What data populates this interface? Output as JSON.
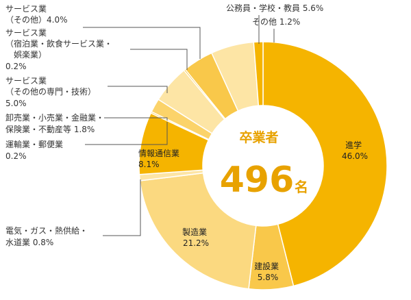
{
  "chart_data": {
    "type": "pie",
    "style": "donut",
    "center": {
      "title": "卒業者",
      "total": "496",
      "unit": "名"
    },
    "slices": [
      {
        "key": "shingaku",
        "label_lines": [
          "進学",
          "46.0%"
        ],
        "value": 46.0,
        "color": "#f5b400"
      },
      {
        "key": "kensetsu",
        "label_lines": [
          "建設業",
          "5.8%"
        ],
        "value": 5.8,
        "color": "#f9c84a"
      },
      {
        "key": "seizo",
        "label_lines": [
          "製造業",
          "21.2%"
        ],
        "value": 21.2,
        "color": "#fbd980"
      },
      {
        "key": "denki",
        "label_lines": [
          "電気・ガス・熱供給・",
          "水道業 0.8%"
        ],
        "value": 0.8,
        "color": "#fde5a5"
      },
      {
        "key": "joho",
        "label_lines": [
          "情報通信業",
          "8.1%"
        ],
        "value": 8.1,
        "color": "#f5b400"
      },
      {
        "key": "unyu",
        "label_lines": [
          "運輸業・郵便業",
          "0.2%"
        ],
        "value": 0.2,
        "color": "#f9c84a"
      },
      {
        "key": "oroshi",
        "label_lines": [
          "卸売業・小売業・金融業・",
          "保険業・不動産等 1.8%"
        ],
        "value": 1.8,
        "color": "#fbd36a"
      },
      {
        "key": "senmon",
        "label_lines": [
          "サービス業",
          "（その他の専門・技術）",
          "5.0%"
        ],
        "value": 5.0,
        "color": "#fde5a5"
      },
      {
        "key": "shukuhaku",
        "label_lines": [
          "サービス業",
          "（宿泊業・飲食サービス業・",
          "娯楽業）",
          "0.2%"
        ],
        "value": 0.2,
        "color": "#f5b400"
      },
      {
        "key": "service_other",
        "label_lines": [
          "サービス業",
          "（その他）4.0%"
        ],
        "value": 4.0,
        "color": "#f9c84a"
      },
      {
        "key": "koumuin",
        "label_lines": [
          "公務員・学校・教員 5.6%"
        ],
        "value": 5.6,
        "color": "#fde5a5"
      },
      {
        "key": "sonota",
        "label_lines": [
          "その他 1.2%"
        ],
        "value": 1.2,
        "color": "#f5b400"
      }
    ]
  }
}
